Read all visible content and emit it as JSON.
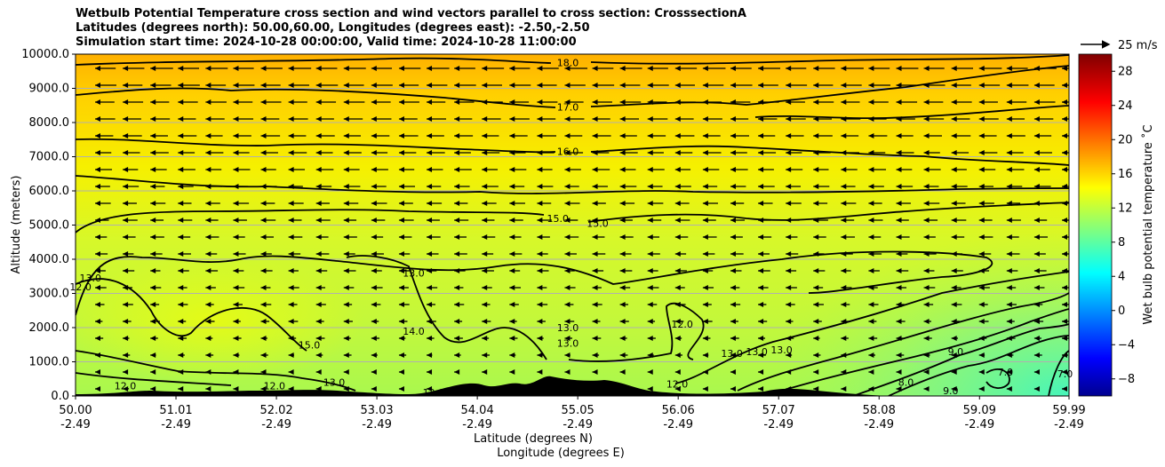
{
  "title": {
    "line1": "Wetbulb Potential Temperature cross section and wind vectors parallel to cross section: CrosssectionA",
    "line2": "Latitudes (degrees north): 50.00,60.00, Longitudes (degrees east): -2.50,-2.50",
    "line3": "Simulation start time: 2024-10-28 00:00:00, Valid time: 2024-10-28 11:00:00"
  },
  "chart_data": {
    "type": "heatmap",
    "xlabel": "Latitude (degrees N)",
    "xlabel2": "Longitude (degrees E)",
    "ylabel": "Altitude (meters)",
    "colorbar_label": "Wet bulb potential temperature ˚C",
    "colormap": "jet",
    "clim": [
      -10,
      30
    ],
    "ylim": [
      0,
      10000
    ],
    "xlim": [
      50.0,
      59.99
    ],
    "grid": "horizontal",
    "x_tick_lat": [
      "50.00",
      "51.01",
      "52.02",
      "53.03",
      "54.04",
      "55.05",
      "56.06",
      "57.07",
      "58.08",
      "59.09",
      "59.99"
    ],
    "x_tick_lon": [
      "-2.49",
      "-2.49",
      "-2.49",
      "-2.49",
      "-2.49",
      "-2.49",
      "-2.49",
      "-2.49",
      "-2.49",
      "-2.49",
      "-2.49"
    ],
    "y_ticks": [
      "0.0",
      "1000.0",
      "2000.0",
      "3000.0",
      "4000.0",
      "5000.0",
      "6000.0",
      "7000.0",
      "8000.0",
      "9000.0",
      "10000.0"
    ],
    "colorbar_ticks": [
      "−8",
      "−4",
      "0",
      "4",
      "8",
      "12",
      "16",
      "20",
      "24",
      "28"
    ],
    "quiver_key": "25 m/s",
    "contour_labels": [
      {
        "text": "18.0",
        "lat": 54.95,
        "alt": 9750
      },
      {
        "text": "17.0",
        "lat": 54.95,
        "alt": 8450
      },
      {
        "text": "16.0",
        "lat": 54.95,
        "alt": 7150
      },
      {
        "text": "15.0",
        "lat": 54.85,
        "alt": 5200
      },
      {
        "text": "15.0",
        "lat": 55.25,
        "alt": 5050
      },
      {
        "text": "13.0",
        "lat": 53.4,
        "alt": 3600
      },
      {
        "text": "14.0",
        "lat": 53.4,
        "alt": 1900
      },
      {
        "text": "15.0",
        "lat": 52.35,
        "alt": 1500
      },
      {
        "text": "13.0",
        "lat": 54.95,
        "alt": 2000
      },
      {
        "text": "13.0",
        "lat": 54.95,
        "alt": 1550
      },
      {
        "text": "12.0",
        "lat": 56.1,
        "alt": 2100
      },
      {
        "text": "13.0",
        "lat": 56.6,
        "alt": 1250
      },
      {
        "text": "13.0",
        "lat": 56.85,
        "alt": 1300
      },
      {
        "text": "13.0",
        "lat": 57.1,
        "alt": 1350
      },
      {
        "text": "12.0",
        "lat": 56.05,
        "alt": 350
      },
      {
        "text": "9.0",
        "lat": 58.85,
        "alt": 1300
      },
      {
        "text": "8.0",
        "lat": 58.35,
        "alt": 400
      },
      {
        "text": "9.0",
        "lat": 58.8,
        "alt": 150
      },
      {
        "text": "7.0",
        "lat": 59.35,
        "alt": 700
      },
      {
        "text": "7.0",
        "lat": 59.95,
        "alt": 650
      },
      {
        "text": "12.0",
        "lat": 50.05,
        "alt": 3200
      },
      {
        "text": "13.0",
        "lat": 50.15,
        "alt": 3450
      },
      {
        "text": "12.0",
        "lat": 50.5,
        "alt": 300
      },
      {
        "text": "12.0",
        "lat": 52.0,
        "alt": 300
      },
      {
        "text": "13.0",
        "lat": 52.6,
        "alt": 400
      },
      {
        "text": "12.0",
        "lat": 53.6,
        "alt": 100
      }
    ]
  }
}
